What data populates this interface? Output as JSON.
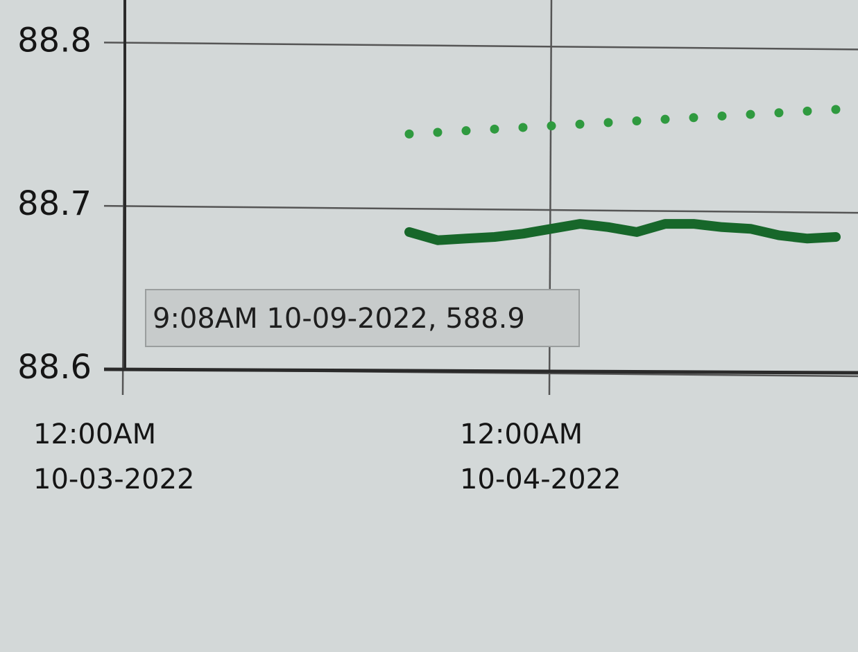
{
  "chart_data": {
    "type": "line",
    "annotation": "9:08AM 10-09-2022, 588.9",
    "x": [
      "2022-10-03T16:00",
      "2022-10-03T17:36",
      "2022-10-03T19:12",
      "2022-10-03T20:48",
      "2022-10-03T22:24",
      "2022-10-04T00:00",
      "2022-10-04T01:36",
      "2022-10-04T03:12",
      "2022-10-04T04:48",
      "2022-10-04T06:24",
      "2022-10-04T08:00",
      "2022-10-04T09:36",
      "2022-10-04T11:12",
      "2022-10-04T12:48",
      "2022-10-04T14:24",
      "2022-10-04T16:00"
    ],
    "series": [
      {
        "color": "#2f9a3f",
        "style": "dotted",
        "values": [
          88.744,
          88.745,
          88.746,
          88.747,
          88.748,
          88.749,
          88.75,
          88.751,
          88.752,
          88.753,
          88.754,
          88.755,
          88.756,
          88.757,
          88.758,
          88.759
        ]
      },
      {
        "color": "#17672a",
        "style": "solid",
        "values": [
          88.684,
          88.679,
          88.68,
          88.681,
          88.683,
          88.686,
          88.689,
          88.687,
          88.684,
          88.689,
          88.689,
          88.687,
          88.686,
          88.682,
          88.68,
          88.681
        ]
      }
    ],
    "xlim": [
      "2022-10-03T00:00",
      "2022-10-04T17:15"
    ],
    "xticks": [
      {
        "value": "2022-10-03T00:00",
        "label": [
          "12:00AM",
          "10-03-2022"
        ]
      },
      {
        "value": "2022-10-04T00:00",
        "label": [
          "12:00AM",
          "10-04-2022"
        ]
      }
    ],
    "ylim": [
      88.6,
      88.826
    ],
    "yticks": [
      88.6,
      88.7,
      88.8
    ],
    "grid": true
  }
}
